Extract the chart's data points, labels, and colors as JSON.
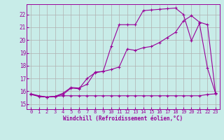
{
  "xlabel": "Windchill (Refroidissement éolien,°C)",
  "bg_color": "#c8ece8",
  "grid_color": "#b0b0b0",
  "line_color": "#990099",
  "xlim": [
    -0.5,
    23.5
  ],
  "ylim": [
    14.6,
    22.8
  ],
  "xticks": [
    0,
    1,
    2,
    3,
    4,
    5,
    6,
    7,
    8,
    9,
    10,
    11,
    12,
    13,
    14,
    15,
    16,
    17,
    18,
    19,
    20,
    21,
    22,
    23
  ],
  "yticks": [
    15,
    16,
    17,
    18,
    19,
    20,
    21,
    22
  ],
  "line1_x": [
    0,
    1,
    2,
    3,
    4,
    5,
    6,
    7,
    8,
    9,
    10,
    11,
    12,
    13,
    14,
    15,
    16,
    17,
    18,
    19,
    20,
    21,
    22,
    23
  ],
  "line1_y": [
    15.8,
    15.65,
    15.55,
    15.6,
    15.75,
    16.25,
    16.2,
    17.0,
    17.45,
    17.55,
    19.5,
    21.2,
    21.2,
    21.2,
    22.3,
    22.35,
    22.4,
    22.45,
    22.5,
    22.0,
    19.95,
    21.3,
    17.8,
    15.85
  ],
  "line2_x": [
    0,
    1,
    2,
    3,
    4,
    5,
    6,
    7,
    8,
    9,
    10,
    11,
    12,
    13,
    14,
    15,
    16,
    17,
    18,
    19,
    20,
    21,
    22,
    23
  ],
  "line2_y": [
    15.8,
    15.6,
    15.55,
    15.6,
    15.85,
    16.3,
    16.25,
    16.55,
    17.5,
    17.55,
    17.7,
    17.9,
    19.3,
    19.2,
    19.4,
    19.5,
    19.8,
    20.2,
    20.6,
    21.5,
    21.9,
    21.4,
    21.2,
    15.85
  ],
  "line3_x": [
    0,
    1,
    2,
    3,
    4,
    5,
    6,
    7,
    8,
    9,
    10,
    11,
    12,
    13,
    14,
    15,
    16,
    17,
    18,
    19,
    20,
    21,
    22,
    23
  ],
  "line3_y": [
    15.75,
    15.6,
    15.55,
    15.6,
    15.65,
    15.65,
    15.65,
    15.65,
    15.65,
    15.65,
    15.65,
    15.65,
    15.65,
    15.65,
    15.65,
    15.65,
    15.65,
    15.65,
    15.65,
    15.65,
    15.65,
    15.65,
    15.75,
    15.8
  ]
}
